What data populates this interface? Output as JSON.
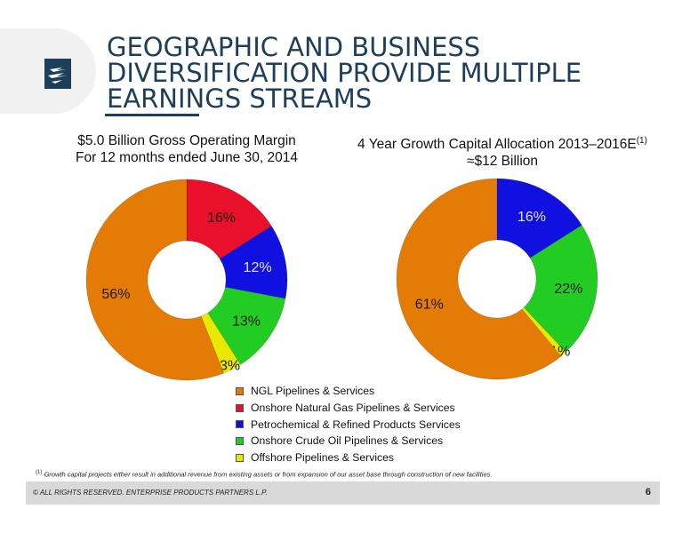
{
  "title_lines": [
    "GEOGRAPHIC AND BUSINESS",
    "DIVERSIFICATION PROVIDE MULTIPLE",
    "EARNINGS STREAMS"
  ],
  "colors": {
    "title": "#1e3f5a",
    "footer_bg": "#d9d9d9"
  },
  "chart_data": [
    {
      "type": "pie",
      "variant": "donut",
      "title_lines": [
        "$5.0 Billion Gross Operating Margin",
        "For 12 months ended June 30, 2014"
      ],
      "title_superscript": "",
      "categories": [
        "Onshore Natural Gas Pipelines & Services",
        "Petrochemical & Refined Products Services",
        "Onshore Crude Oil Pipelines & Services",
        "Offshore Pipelines & Services",
        "NGL Pipelines & Services"
      ],
      "values": [
        16,
        12,
        13,
        3,
        56
      ],
      "labels": [
        "16%",
        "12%",
        "13%",
        "3%",
        "56%"
      ],
      "colors": [
        "#e8102a",
        "#1010e0",
        "#22cc22",
        "#e8e800",
        "#e37b06"
      ]
    },
    {
      "type": "pie",
      "variant": "donut",
      "title_lines": [
        "4 Year Growth Capital Allocation 2013–2016E",
        "≈$12 Billion"
      ],
      "title_superscript": "(1)",
      "categories": [
        "Petrochemical & Refined Products Services",
        "Onshore Crude Oil Pipelines & Services",
        "Offshore Pipelines & Services",
        "NGL Pipelines & Services"
      ],
      "values": [
        16,
        22,
        1,
        61
      ],
      "labels": [
        "16%",
        "22%",
        "1%",
        "61%"
      ],
      "colors": [
        "#1010e0",
        "#22cc22",
        "#e8e800",
        "#e37b06"
      ]
    }
  ],
  "legend": [
    {
      "label": "NGL Pipelines & Services",
      "color": "#e37b06"
    },
    {
      "label": "Onshore Natural Gas Pipelines & Services",
      "color": "#e8102a"
    },
    {
      "label": "Petrochemical & Refined Products Services",
      "color": "#1010e0"
    },
    {
      "label": "Onshore Crude Oil Pipelines & Services",
      "color": "#22cc22"
    },
    {
      "label": "Offshore Pipelines & Services",
      "color": "#e8e800"
    }
  ],
  "footnote": {
    "marker": "(1)",
    "text": "Growth capital projects either result in additional revenue from existing assets or from expansion of our asset base through construction of new facilities."
  },
  "footer": {
    "copyright": "© ALL RIGHTS RESERVED. ENTERPRISE PRODUCTS PARTNERS L.P.",
    "page_number": "6"
  }
}
